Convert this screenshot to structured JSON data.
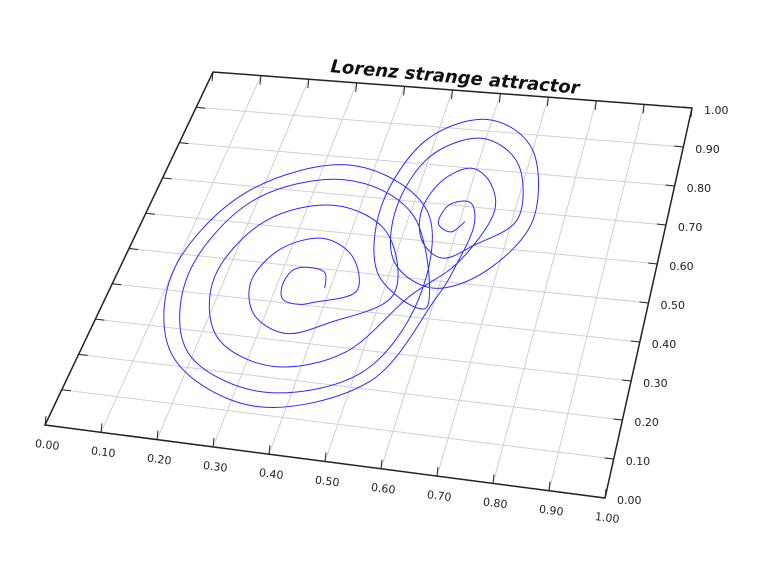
{
  "chart_data": {
    "type": "line",
    "title": "Lorenz strange attractor",
    "color": "#2a2aff",
    "x": [
      0.39,
      0.38,
      0.35,
      0.32,
      0.31,
      0.32,
      0.35,
      0.38,
      0.45,
      0.42,
      0.35,
      0.28,
      0.25,
      0.28,
      0.35,
      0.42,
      0.52,
      0.47,
      0.35,
      0.23,
      0.18,
      0.23,
      0.35,
      0.47,
      0.55,
      0.62,
      0.66,
      0.64,
      0.59,
      0.54,
      0.52,
      0.54,
      0.59,
      0.64,
      0.71,
      0.68,
      0.59,
      0.5,
      0.47,
      0.5,
      0.59,
      0.68,
      0.74,
      0.7,
      0.59,
      0.48,
      0.44,
      0.48,
      0.59,
      0.51,
      0.35,
      0.19,
      0.13,
      0.19,
      0.35,
      0.51,
      0.57,
      0.53,
      0.35,
      0.17,
      0.1,
      0.17,
      0.35,
      0.53,
      0.6,
      0.62,
      0.63,
      0.61,
      0.57,
      0.56,
      0.59,
      0.61
    ],
    "y": [
      0.45,
      0.49,
      0.5,
      0.49,
      0.45,
      0.41,
      0.4,
      0.41,
      0.45,
      0.54,
      0.58,
      0.54,
      0.45,
      0.36,
      0.32,
      0.36,
      0.45,
      0.61,
      0.67,
      0.61,
      0.45,
      0.29,
      0.23,
      0.29,
      0.45,
      0.55,
      0.68,
      0.76,
      0.8,
      0.76,
      0.68,
      0.6,
      0.56,
      0.6,
      0.68,
      0.82,
      0.88,
      0.82,
      0.68,
      0.54,
      0.48,
      0.54,
      0.68,
      0.86,
      0.93,
      0.86,
      0.68,
      0.5,
      0.43,
      0.66,
      0.74,
      0.66,
      0.45,
      0.24,
      0.16,
      0.24,
      0.45,
      0.68,
      0.78,
      0.68,
      0.45,
      0.22,
      0.12,
      0.22,
      0.45,
      0.55,
      0.65,
      0.71,
      0.7,
      0.65,
      0.63,
      0.66
    ],
    "xlim": [
      0,
      1
    ],
    "ylim": [
      0,
      1
    ],
    "xticks": [
      {
        "value": 0,
        "label": "0.00"
      },
      {
        "value": 0.1,
        "label": "0.10"
      },
      {
        "value": 0.2,
        "label": "0.20"
      },
      {
        "value": 0.3,
        "label": "0.30"
      },
      {
        "value": 0.4,
        "label": "0.40"
      },
      {
        "value": 0.5,
        "label": "0.50"
      },
      {
        "value": 0.6,
        "label": "0.60"
      },
      {
        "value": 0.7,
        "label": "0.70"
      },
      {
        "value": 0.8,
        "label": "0.80"
      },
      {
        "value": 0.9,
        "label": "0.90"
      },
      {
        "value": 1,
        "label": "1.00"
      }
    ],
    "yticks": [
      {
        "value": 0,
        "label": "0.00"
      },
      {
        "value": 0.1,
        "label": "0.10"
      },
      {
        "value": 0.2,
        "label": "0.20"
      },
      {
        "value": 0.3,
        "label": "0.30"
      },
      {
        "value": 0.4,
        "label": "0.40"
      },
      {
        "value": 0.5,
        "label": "0.50"
      },
      {
        "value": 0.6,
        "label": "0.60"
      },
      {
        "value": 0.7,
        "label": "0.70"
      },
      {
        "value": 0.8,
        "label": "0.80"
      },
      {
        "value": 0.9,
        "label": "0.90"
      },
      {
        "value": 1,
        "label": "1.00"
      }
    ],
    "grid": true
  }
}
